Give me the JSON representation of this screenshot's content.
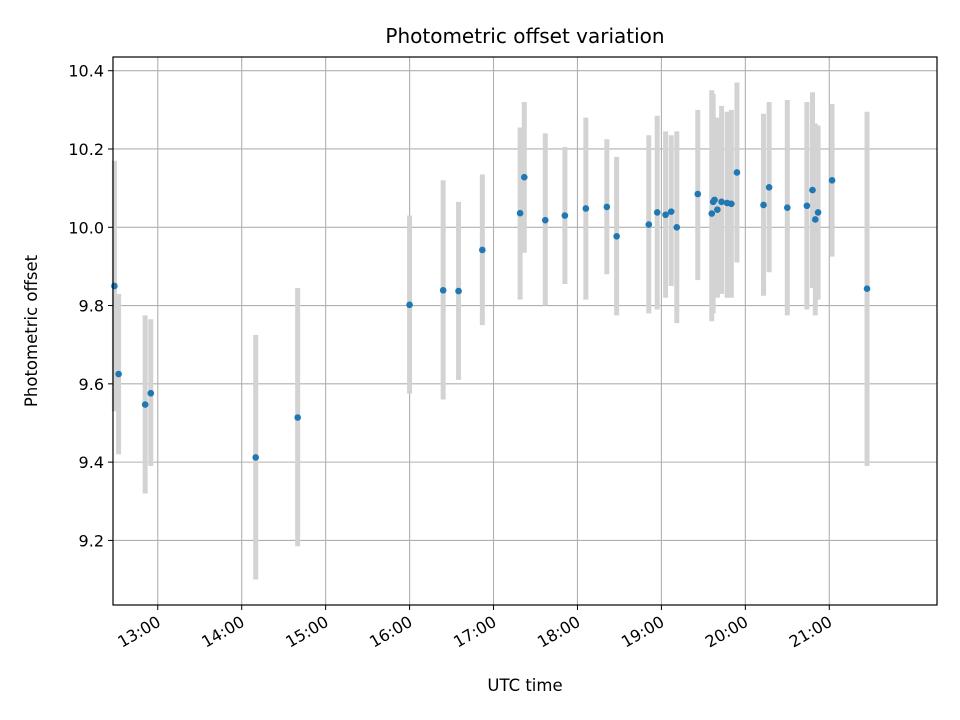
{
  "chart_data": {
    "type": "scatter",
    "title": "Photometric offset variation",
    "xlabel": "UTC time",
    "ylabel": "Photometric offset",
    "xlim": [
      "12:28",
      "22:17"
    ],
    "ylim": [
      9.035,
      10.435
    ],
    "grid": true,
    "x_ticks": [
      "13:00",
      "14:00",
      "15:00",
      "16:00",
      "17:00",
      "18:00",
      "19:00",
      "20:00",
      "21:00"
    ],
    "y_ticks": [
      "9.2",
      "9.4",
      "9.6",
      "9.8",
      "10.0",
      "10.2",
      "10.4"
    ],
    "marker_color": "#1f77b4",
    "errorbar_color": "#d3d3d3",
    "points": [
      {
        "t": "12:29",
        "y": 9.85,
        "lo": 9.53,
        "hi": 10.17
      },
      {
        "t": "12:32",
        "y": 9.625,
        "lo": 9.42,
        "hi": 9.83
      },
      {
        "t": "12:51",
        "y": 9.547,
        "lo": 9.32,
        "hi": 9.775
      },
      {
        "t": "12:55",
        "y": 9.576,
        "lo": 9.39,
        "hi": 9.765
      },
      {
        "t": "14:10",
        "y": 9.412,
        "lo": 9.1,
        "hi": 9.725
      },
      {
        "t": "14:40",
        "y": 9.514,
        "lo": 9.185,
        "hi": 9.845
      },
      {
        "t": "16:00",
        "y": 9.802,
        "lo": 9.575,
        "hi": 10.03
      },
      {
        "t": "16:24",
        "y": 9.839,
        "lo": 9.56,
        "hi": 10.12
      },
      {
        "t": "16:35",
        "y": 9.837,
        "lo": 9.61,
        "hi": 10.065
      },
      {
        "t": "16:52",
        "y": 9.942,
        "lo": 9.75,
        "hi": 10.135
      },
      {
        "t": "17:19",
        "y": 10.036,
        "lo": 9.815,
        "hi": 10.255
      },
      {
        "t": "17:22",
        "y": 10.128,
        "lo": 9.935,
        "hi": 10.32
      },
      {
        "t": "17:37",
        "y": 10.018,
        "lo": 9.8,
        "hi": 10.24
      },
      {
        "t": "17:51",
        "y": 10.03,
        "lo": 9.855,
        "hi": 10.205
      },
      {
        "t": "18:06",
        "y": 10.048,
        "lo": 9.815,
        "hi": 10.28
      },
      {
        "t": "18:21",
        "y": 10.052,
        "lo": 9.88,
        "hi": 10.225
      },
      {
        "t": "18:28",
        "y": 9.977,
        "lo": 9.775,
        "hi": 10.18
      },
      {
        "t": "18:51",
        "y": 10.007,
        "lo": 9.78,
        "hi": 10.235
      },
      {
        "t": "18:57",
        "y": 10.038,
        "lo": 9.79,
        "hi": 10.285
      },
      {
        "t": "19:03",
        "y": 10.032,
        "lo": 9.82,
        "hi": 10.245
      },
      {
        "t": "19:07",
        "y": 10.04,
        "lo": 9.85,
        "hi": 10.235
      },
      {
        "t": "19:11",
        "y": 10.0,
        "lo": 9.755,
        "hi": 10.245
      },
      {
        "t": "19:26",
        "y": 10.085,
        "lo": 9.865,
        "hi": 10.3
      },
      {
        "t": "19:36",
        "y": 10.035,
        "lo": 9.76,
        "hi": 10.35
      },
      {
        "t": "19:37",
        "y": 10.065,
        "lo": 9.78,
        "hi": 10.34
      },
      {
        "t": "19:38",
        "y": 10.07,
        "lo": 9.85,
        "hi": 10.26
      },
      {
        "t": "19:40",
        "y": 10.045,
        "lo": 9.82,
        "hi": 10.28
      },
      {
        "t": "19:43",
        "y": 10.065,
        "lo": 9.83,
        "hi": 10.31
      },
      {
        "t": "19:47",
        "y": 10.062,
        "lo": 9.82,
        "hi": 10.295
      },
      {
        "t": "19:50",
        "y": 10.06,
        "lo": 9.82,
        "hi": 10.3
      },
      {
        "t": "19:54",
        "y": 10.14,
        "lo": 9.91,
        "hi": 10.37
      },
      {
        "t": "20:13",
        "y": 10.057,
        "lo": 9.825,
        "hi": 10.29
      },
      {
        "t": "20:17",
        "y": 10.102,
        "lo": 9.885,
        "hi": 10.32
      },
      {
        "t": "20:30",
        "y": 10.05,
        "lo": 9.775,
        "hi": 10.325
      },
      {
        "t": "20:44",
        "y": 10.055,
        "lo": 9.79,
        "hi": 10.32
      },
      {
        "t": "20:48",
        "y": 10.095,
        "lo": 9.845,
        "hi": 10.345
      },
      {
        "t": "20:50",
        "y": 10.02,
        "lo": 9.775,
        "hi": 10.265
      },
      {
        "t": "20:52",
        "y": 10.038,
        "lo": 9.815,
        "hi": 10.26
      },
      {
        "t": "21:02",
        "y": 10.12,
        "lo": 9.925,
        "hi": 10.315
      },
      {
        "t": "21:27",
        "y": 9.843,
        "lo": 9.39,
        "hi": 10.295
      }
    ]
  }
}
